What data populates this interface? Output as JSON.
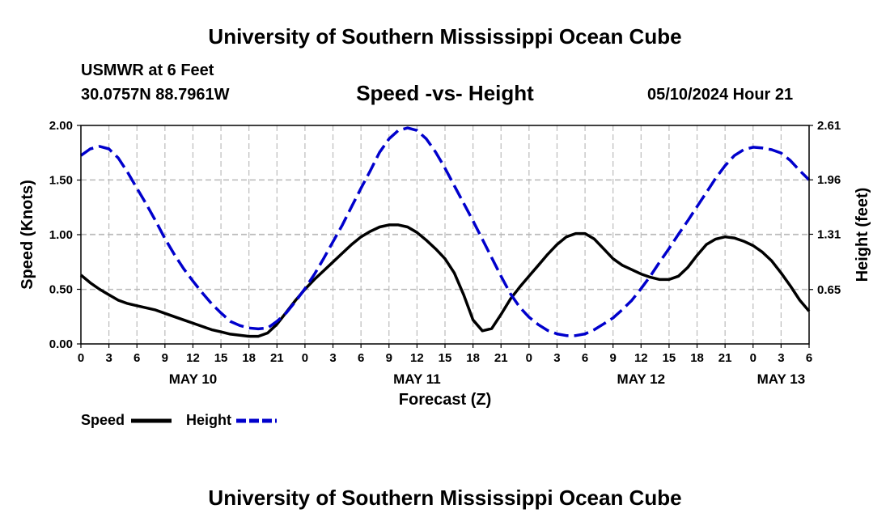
{
  "header": {
    "title_top": "University of Southern Mississippi Ocean Cube",
    "station": "USMWR at 6 Feet",
    "coordinates": "30.0757N  88.7961W",
    "chart_title": "Speed -vs- Height",
    "datetime": "05/10/2024 Hour 21",
    "title_bottom": "University of Southern Mississippi Ocean Cube"
  },
  "legend": {
    "speed_label": "Speed",
    "height_label": "Height"
  },
  "colors": {
    "speed": "#000000",
    "height": "#0000cc",
    "grid": "#bbbbbb"
  },
  "chart_data": {
    "type": "line",
    "title": "Speed -vs- Height",
    "xlabel": "Forecast (Z)",
    "ylabel": "Speed (Knots)",
    "y2label": "Height (feet)",
    "xlim": [
      0,
      78
    ],
    "ylim": [
      0,
      2.0
    ],
    "y2lim": [
      0,
      2.61
    ],
    "grid": true,
    "y_ticks": [
      "0.00",
      "0.50",
      "1.00",
      "1.50",
      "2.00"
    ],
    "y2_ticks": [
      "0.65",
      "1.31",
      "1.96",
      "2.61"
    ],
    "x_tick_labels": [
      "0",
      "3",
      "6",
      "9",
      "12",
      "15",
      "18",
      "21",
      "0",
      "3",
      "6",
      "9",
      "12",
      "15",
      "18",
      "21",
      "0",
      "3",
      "6",
      "9",
      "12",
      "15",
      "18",
      "21",
      "0",
      "3",
      "6"
    ],
    "day_labels": [
      {
        "hour": 12,
        "label": "MAY 10"
      },
      {
        "hour": 36,
        "label": "MAY 11"
      },
      {
        "hour": 60,
        "label": "MAY 12"
      },
      {
        "hour": 75,
        "label": "MAY 13"
      }
    ],
    "series": [
      {
        "name": "Speed",
        "axis": "left",
        "style": "solid",
        "x": [
          0,
          1,
          2,
          3,
          4,
          5,
          6,
          7,
          8,
          9,
          10,
          11,
          12,
          13,
          14,
          15,
          16,
          17,
          18,
          19,
          20,
          21,
          22,
          23,
          24,
          25,
          26,
          27,
          28,
          29,
          30,
          31,
          32,
          33,
          34,
          35,
          36,
          37,
          38,
          39,
          40,
          41,
          42,
          43,
          44,
          45,
          46,
          47,
          48,
          49,
          50,
          51,
          52,
          53,
          54,
          55,
          56,
          57,
          58,
          59,
          60,
          61,
          62,
          63,
          64,
          65,
          66,
          67,
          68,
          69,
          70,
          71,
          72,
          73,
          74,
          75,
          76,
          77,
          78
        ],
        "values": [
          0.63,
          0.56,
          0.5,
          0.45,
          0.4,
          0.37,
          0.35,
          0.33,
          0.31,
          0.28,
          0.25,
          0.22,
          0.19,
          0.16,
          0.13,
          0.11,
          0.09,
          0.08,
          0.07,
          0.07,
          0.1,
          0.18,
          0.29,
          0.4,
          0.5,
          0.59,
          0.67,
          0.75,
          0.83,
          0.91,
          0.98,
          1.03,
          1.07,
          1.09,
          1.09,
          1.07,
          1.02,
          0.95,
          0.87,
          0.78,
          0.65,
          0.45,
          0.22,
          0.12,
          0.14,
          0.27,
          0.41,
          0.52,
          0.62,
          0.72,
          0.82,
          0.91,
          0.98,
          1.01,
          1.01,
          0.96,
          0.87,
          0.78,
          0.72,
          0.68,
          0.64,
          0.61,
          0.59,
          0.59,
          0.62,
          0.7,
          0.81,
          0.91,
          0.96,
          0.98,
          0.97,
          0.94,
          0.9,
          0.84,
          0.76,
          0.65,
          0.53,
          0.4,
          0.3
        ]
      },
      {
        "name": "Height",
        "axis": "right",
        "style": "dashed",
        "x": [
          0,
          1,
          2,
          3,
          4,
          5,
          6,
          7,
          8,
          9,
          10,
          11,
          12,
          13,
          14,
          15,
          16,
          17,
          18,
          19,
          20,
          21,
          22,
          23,
          24,
          25,
          26,
          27,
          28,
          29,
          30,
          31,
          32,
          33,
          34,
          35,
          36,
          37,
          38,
          39,
          40,
          41,
          42,
          43,
          44,
          45,
          46,
          47,
          48,
          49,
          50,
          51,
          52,
          53,
          54,
          55,
          56,
          57,
          58,
          59,
          60,
          61,
          62,
          63,
          64,
          65,
          66,
          67,
          68,
          69,
          70,
          71,
          72,
          73,
          74,
          75,
          76,
          77,
          78
        ],
        "values": [
          2.25,
          2.33,
          2.36,
          2.33,
          2.22,
          2.05,
          1.86,
          1.67,
          1.47,
          1.26,
          1.07,
          0.9,
          0.75,
          0.61,
          0.48,
          0.37,
          0.27,
          0.22,
          0.19,
          0.18,
          0.19,
          0.27,
          0.37,
          0.51,
          0.66,
          0.83,
          1.02,
          1.22,
          1.42,
          1.64,
          1.86,
          2.07,
          2.29,
          2.45,
          2.55,
          2.58,
          2.55,
          2.45,
          2.29,
          2.1,
          1.89,
          1.68,
          1.47,
          1.25,
          1.03,
          0.81,
          0.6,
          0.44,
          0.32,
          0.23,
          0.16,
          0.12,
          0.1,
          0.1,
          0.12,
          0.17,
          0.24,
          0.31,
          0.41,
          0.52,
          0.66,
          0.81,
          0.98,
          1.14,
          1.31,
          1.47,
          1.64,
          1.81,
          1.98,
          2.13,
          2.25,
          2.32,
          2.35,
          2.34,
          2.32,
          2.28,
          2.19,
          2.07,
          1.96
        ]
      }
    ]
  }
}
